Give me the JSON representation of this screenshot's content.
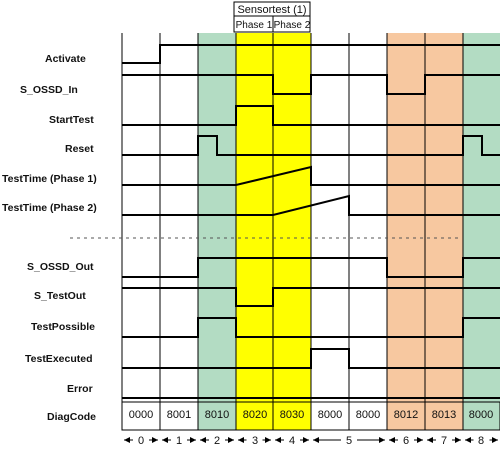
{
  "header": {
    "title": "Sensortest (1)",
    "phase1": "Phase 1",
    "phase2": "Phase 2"
  },
  "colors": {
    "green": "#b3dcc3",
    "yellow": "#ffff00",
    "orange": "#f7c8a0",
    "line": "#000000"
  },
  "signals": [
    "Activate",
    "S_OSSD_In",
    "StartTest",
    "Reset",
    "TestTime (Phase 1)",
    "TestTime (Phase 2)",
    "S_OSSD_Out",
    "S_TestOut",
    "TestPossible",
    "TestExecuted",
    "Error",
    "DiagCode"
  ],
  "diag_codes": [
    "0000",
    "8001",
    "8010",
    "8020",
    "8030",
    "8000",
    "8000",
    "8012",
    "8013",
    "8000"
  ],
  "steps": [
    "0",
    "1",
    "2",
    "3",
    "4",
    "5",
    "6",
    "7",
    "8"
  ]
}
